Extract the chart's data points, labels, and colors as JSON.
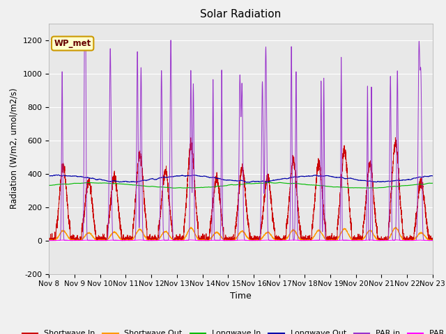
{
  "title": "Solar Radiation",
  "xlabel": "Time",
  "ylabel": "Radiation (W/m2, umol/m2/s)",
  "ylim": [
    -200,
    1300
  ],
  "yticks": [
    -200,
    0,
    200,
    400,
    600,
    800,
    1000,
    1200
  ],
  "x_tick_labels": [
    "Nov 8",
    "Nov 9",
    "Nov 10",
    "Nov 11",
    "Nov 12",
    "Nov 13",
    "Nov 14",
    "Nov 15",
    "Nov 16",
    "Nov 17",
    "Nov 18",
    "Nov 19",
    "Nov 20",
    "Nov 21",
    "Nov 22",
    "Nov 23"
  ],
  "annotation_text": "WP_met",
  "fig_facecolor": "#f0f0f0",
  "ax_facecolor": "#e8e8e8",
  "series_colors": {
    "shortwave_in": "#cc0000",
    "shortwave_out": "#ff9900",
    "longwave_in": "#00bb00",
    "longwave_out": "#0000aa",
    "par_in": "#9933cc",
    "par_out": "#ff00ff"
  },
  "legend_labels": [
    "Shortwave In",
    "Shortwave Out",
    "Longwave In",
    "Longwave Out",
    "PAR in",
    "PAR out"
  ],
  "n_days": 15,
  "seed": 42
}
